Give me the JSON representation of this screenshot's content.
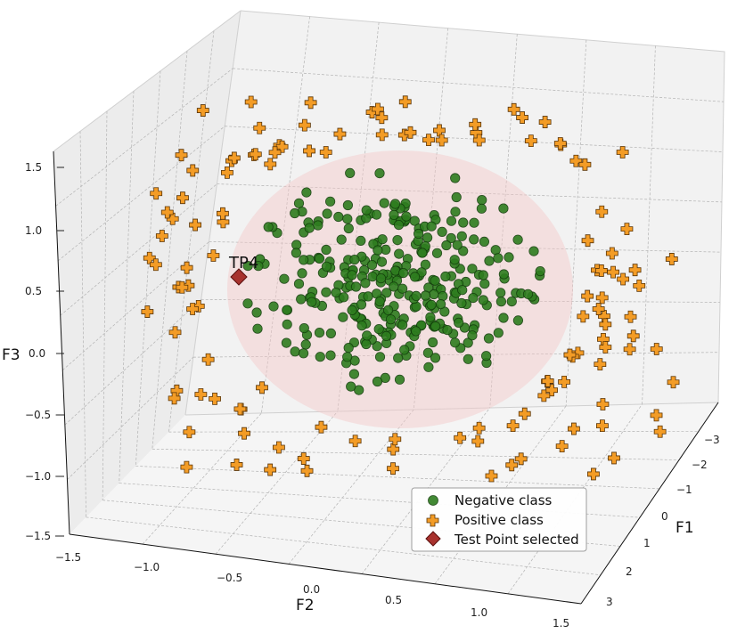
{
  "chart_data": {
    "type": "scatter",
    "dimensions": 3,
    "xlabel": "F1",
    "ylabel": "F2",
    "zlabel": "F3",
    "axes": {
      "F1": {
        "ticks": [
          "−3",
          "−2",
          "−1",
          "0",
          "1",
          "2",
          "3"
        ]
      },
      "F2": {
        "ticks": [
          "−1.5",
          "−1.0",
          "−0.5",
          "0.0",
          "0.5",
          "1.0",
          "1.5"
        ]
      },
      "F3": {
        "ticks": [
          "−1.5",
          "−1.0",
          "−0.5",
          "0.0",
          "0.5",
          "1.0",
          "1.5"
        ]
      }
    },
    "grid": true,
    "legend": {
      "placement": "lower-right",
      "entries": [
        {
          "label": "Negative class",
          "marker": "circle",
          "color": "#2e7d1f"
        },
        {
          "label": "Positive class",
          "marker": "plus",
          "color": "#f39c26"
        },
        {
          "label": "Test Point selected",
          "marker": "diamond",
          "color": "#a8322e"
        }
      ]
    },
    "highlight_sphere": {
      "color": "#f4c7c7"
    },
    "test_point": {
      "label": "TP4"
    },
    "series": [
      {
        "name": "Negative class",
        "approx_count": 320
      },
      {
        "name": "Positive class",
        "approx_count": 130
      },
      {
        "name": "Test Point selected",
        "approx_count": 1
      }
    ]
  }
}
